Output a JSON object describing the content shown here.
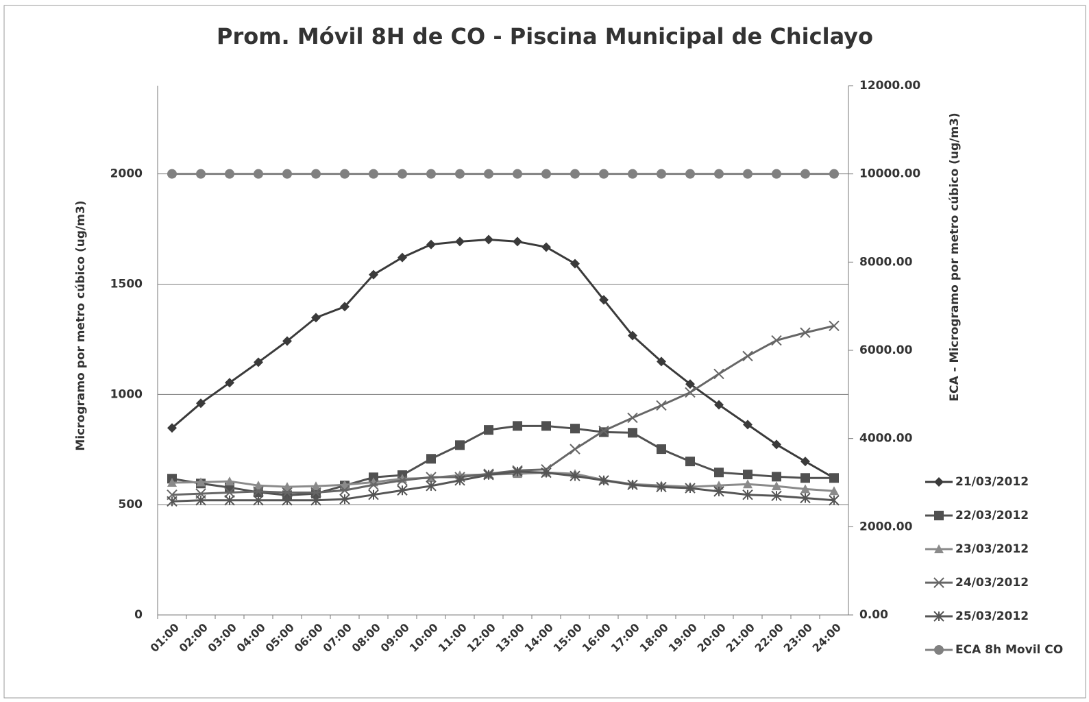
{
  "chart_data": {
    "type": "line",
    "title": "Prom. Móvil 8H de CO - Piscina Municipal de Chiclayo",
    "y_label": "Microgramo por metro cúbico (ug/m3)",
    "y2_label": "ECA - Microgramo por metro cúbico (ug/m3)",
    "categories": [
      "01:00",
      "02:00",
      "03:00",
      "04:00",
      "05:00",
      "06:00",
      "07:00",
      "08:00",
      "09:00",
      "10:00",
      "11:00",
      "12:00",
      "13:00",
      "14:00",
      "15:00",
      "16:00",
      "17:00",
      "18:00",
      "19:00",
      "20:00",
      "21:00",
      "22:00",
      "23:00",
      "24:00"
    ],
    "ylim": [
      0,
      2400
    ],
    "yticks": [
      0,
      500,
      1000,
      1500,
      2000
    ],
    "y2lim": [
      0,
      12000
    ],
    "y2ticks": [
      {
        "value": 0,
        "label": "0.00"
      },
      {
        "value": 2000,
        "label": "2000.00"
      },
      {
        "value": 4000,
        "label": "4000.00"
      },
      {
        "value": 6000,
        "label": "6000.00"
      },
      {
        "value": 8000,
        "label": "8000.00"
      },
      {
        "value": 10000,
        "label": "10000.00"
      },
      {
        "value": 12000,
        "label": "12000.00"
      }
    ],
    "grid": true,
    "legend": "right",
    "series": [
      {
        "name": "21/03/2012",
        "color": "#3a3a3a",
        "marker": "diamond",
        "values": [
          848,
          960,
          1053,
          1146,
          1242,
          1348,
          1398,
          1543,
          1621,
          1680,
          1693,
          1702,
          1693,
          1668,
          1593,
          1429,
          1267,
          1149,
          1047,
          953,
          863,
          773,
          696,
          621
        ]
      },
      {
        "name": "22/03/2012",
        "color": "#505050",
        "marker": "square",
        "values": [
          618,
          596,
          578,
          556,
          543,
          550,
          587,
          624,
          634,
          708,
          770,
          839,
          857,
          857,
          845,
          829,
          826,
          752,
          696,
          646,
          637,
          627,
          621,
          621
        ]
      },
      {
        "name": "23/03/2012",
        "color": "#8a8a8a",
        "marker": "triangle",
        "values": [
          600,
          602,
          606,
          587,
          581,
          584,
          590,
          602,
          618,
          621,
          634,
          637,
          640,
          646,
          640,
          612,
          593,
          587,
          581,
          587,
          593,
          584,
          571,
          562
        ]
      },
      {
        "name": "24/03/2012",
        "color": "#666666",
        "marker": "x",
        "values": [
          545,
          550,
          555,
          560,
          555,
          555,
          565,
          590,
          610,
          625,
          625,
          640,
          655,
          660,
          752,
          835,
          894,
          950,
          1009,
          1093,
          1174,
          1245,
          1280,
          1311
        ]
      },
      {
        "name": "25/03/2012",
        "color": "#555555",
        "marker": "star",
        "values": [
          515,
          520,
          520,
          520,
          520,
          520,
          525,
          545,
          565,
          585,
          610,
          635,
          650,
          645,
          630,
          610,
          590,
          580,
          575,
          560,
          545,
          540,
          530,
          520
        ]
      },
      {
        "name": "ECA 8h Movil CO",
        "color": "#808080",
        "marker": "circle",
        "axis": "y2",
        "values": [
          10000,
          10000,
          10000,
          10000,
          10000,
          10000,
          10000,
          10000,
          10000,
          10000,
          10000,
          10000,
          10000,
          10000,
          10000,
          10000,
          10000,
          10000,
          10000,
          10000,
          10000,
          10000,
          10000,
          10000
        ]
      }
    ]
  }
}
